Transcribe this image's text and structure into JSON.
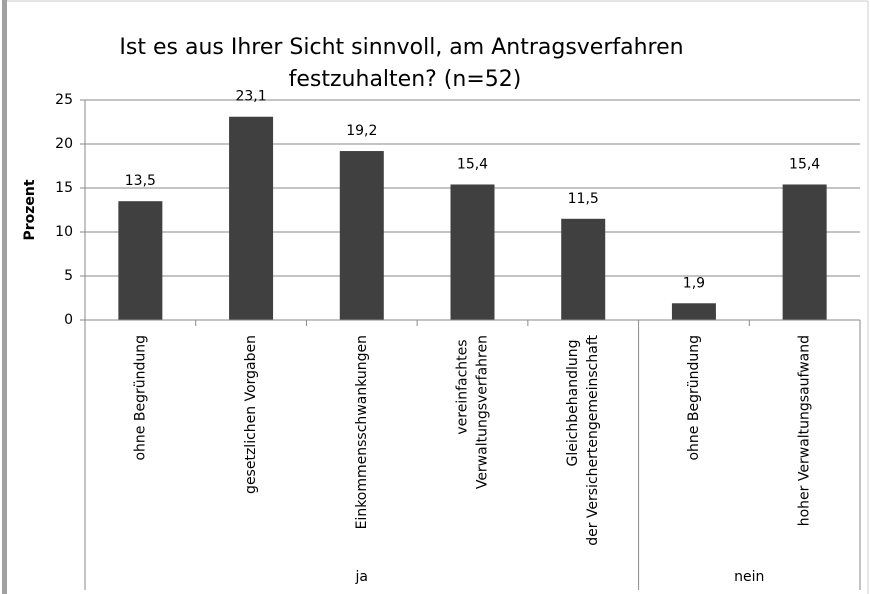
{
  "chart_data": {
    "type": "bar",
    "title": "Ist es aus Ihrer Sicht sinnvoll, am Antragsverfahren festzuhalten? (n=52)",
    "y_label": "Prozent",
    "color": "#404040",
    "groups": [
      {
        "name": "ja",
        "categories": [
          "ohne Begründung",
          "gesetzlichen Vorgaben",
          "Einkommensschwankungen",
          "vereinfachtes Verwaltungsverfahren",
          "Gleichbehandlung der Versichertengemeinschaft"
        ],
        "values": [
          13.5,
          23.1,
          19.2,
          15.4,
          11.5
        ],
        "value_labels": [
          "13,5",
          "23,1",
          "19,2",
          "15,4",
          "11,5"
        ]
      },
      {
        "name": "nein",
        "categories": [
          "ohne Begründung",
          "hoher Verwaltungsaufwand"
        ],
        "values": [
          1.9,
          15.4
        ],
        "value_labels": [
          "1,9",
          "15,4"
        ]
      }
    ],
    "ylim": [
      0,
      25
    ],
    "yticks": [
      0,
      5,
      10,
      15,
      20,
      25
    ],
    "grid": true
  }
}
